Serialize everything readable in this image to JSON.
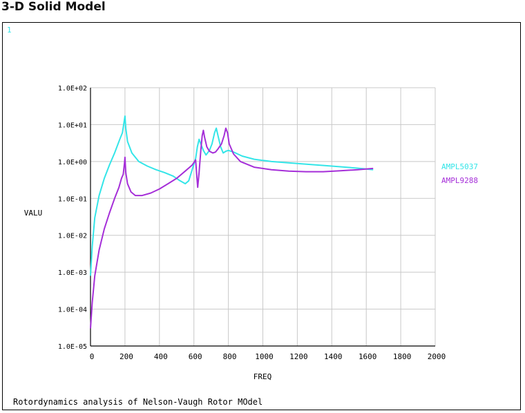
{
  "page": {
    "title": "3-D Solid Model"
  },
  "window": {
    "number_label": "1"
  },
  "caption": "Rotordynamics analysis of Nelson-Vaugh Rotor MOdel",
  "chart_data": {
    "type": "line",
    "title": "",
    "xlabel": "FREQ",
    "ylabel": "VALU",
    "xlim": [
      0,
      2000
    ],
    "ylim": [
      1e-05,
      100
    ],
    "yscale": "log",
    "grid": true,
    "legend_position": "right",
    "x_ticks": [
      0,
      200,
      400,
      600,
      800,
      1000,
      1200,
      1400,
      1600,
      1800,
      2000
    ],
    "y_ticks": [
      1e-05,
      0.0001,
      0.001,
      0.01,
      0.1,
      1,
      10,
      100
    ],
    "y_tick_labels": [
      "1.0E-05",
      "1.0E-04",
      "1.0E-03",
      "1.0E-02",
      "1.0E-01",
      "1.0E+00",
      "1.0E+01",
      "1.0E+02"
    ],
    "series": [
      {
        "name": "AMPL5037",
        "color": "#33e5e8",
        "points": [
          [
            0,
            0.0008
          ],
          [
            10,
            0.005
          ],
          [
            25,
            0.03
          ],
          [
            50,
            0.12
          ],
          [
            80,
            0.35
          ],
          [
            110,
            0.8
          ],
          [
            140,
            1.7
          ],
          [
            170,
            4.0
          ],
          [
            185,
            6.0
          ],
          [
            195,
            12
          ],
          [
            200,
            17
          ],
          [
            205,
            8
          ],
          [
            215,
            3.5
          ],
          [
            240,
            1.7
          ],
          [
            280,
            1.0
          ],
          [
            330,
            0.75
          ],
          [
            380,
            0.6
          ],
          [
            430,
            0.5
          ],
          [
            480,
            0.4
          ],
          [
            520,
            0.3
          ],
          [
            550,
            0.25
          ],
          [
            570,
            0.3
          ],
          [
            590,
            0.6
          ],
          [
            610,
            1.2
          ],
          [
            620,
            2.5
          ],
          [
            630,
            4.0
          ],
          [
            640,
            3.0
          ],
          [
            655,
            2.0
          ],
          [
            670,
            1.5
          ],
          [
            690,
            2.0
          ],
          [
            705,
            3.0
          ],
          [
            720,
            6.0
          ],
          [
            730,
            8.0
          ],
          [
            740,
            5.0
          ],
          [
            755,
            2.5
          ],
          [
            770,
            1.7
          ],
          [
            785,
            1.9
          ],
          [
            800,
            2.0
          ],
          [
            830,
            1.8
          ],
          [
            880,
            1.4
          ],
          [
            950,
            1.15
          ],
          [
            1050,
            1.0
          ],
          [
            1200,
            0.88
          ],
          [
            1400,
            0.75
          ],
          [
            1550,
            0.66
          ],
          [
            1640,
            0.6
          ]
        ]
      },
      {
        "name": "AMPL9288",
        "color": "#a52ed8",
        "points": [
          [
            0,
            3e-05
          ],
          [
            10,
            0.00015
          ],
          [
            25,
            0.0008
          ],
          [
            50,
            0.004
          ],
          [
            80,
            0.015
          ],
          [
            110,
            0.04
          ],
          [
            140,
            0.1
          ],
          [
            165,
            0.2
          ],
          [
            180,
            0.35
          ],
          [
            190,
            0.45
          ],
          [
            197,
            0.9
          ],
          [
            200,
            1.3
          ],
          [
            205,
            0.5
          ],
          [
            215,
            0.25
          ],
          [
            235,
            0.15
          ],
          [
            260,
            0.12
          ],
          [
            300,
            0.12
          ],
          [
            350,
            0.14
          ],
          [
            400,
            0.18
          ],
          [
            450,
            0.25
          ],
          [
            500,
            0.35
          ],
          [
            550,
            0.55
          ],
          [
            590,
            0.8
          ],
          [
            610,
            1.1
          ],
          [
            617,
            0.4
          ],
          [
            622,
            0.2
          ],
          [
            630,
            0.5
          ],
          [
            640,
            2.0
          ],
          [
            648,
            5.0
          ],
          [
            655,
            7.0
          ],
          [
            662,
            4.5
          ],
          [
            675,
            2.5
          ],
          [
            690,
            1.9
          ],
          [
            710,
            1.7
          ],
          [
            725,
            1.8
          ],
          [
            740,
            2.2
          ],
          [
            760,
            3.0
          ],
          [
            775,
            5.0
          ],
          [
            785,
            8.0
          ],
          [
            795,
            6.0
          ],
          [
            805,
            3.0
          ],
          [
            830,
            1.6
          ],
          [
            870,
            1.0
          ],
          [
            950,
            0.7
          ],
          [
            1050,
            0.6
          ],
          [
            1150,
            0.55
          ],
          [
            1250,
            0.53
          ],
          [
            1350,
            0.53
          ],
          [
            1450,
            0.56
          ],
          [
            1550,
            0.6
          ],
          [
            1640,
            0.65
          ]
        ]
      }
    ]
  }
}
